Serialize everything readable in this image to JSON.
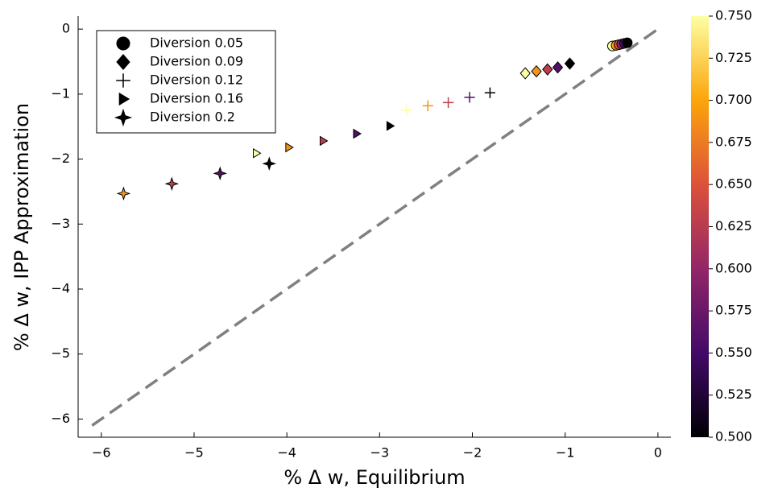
{
  "chart_data": {
    "type": "scatter",
    "xlabel": "% Δ w, Equilibrium",
    "ylabel": "% Δ w, IPP Approximation",
    "xlim": [
      -6.25,
      0.14
    ],
    "ylim": [
      -6.28,
      0.2
    ],
    "xticks": [
      {
        "value": -6,
        "label": "−6"
      },
      {
        "value": -5,
        "label": "−5"
      },
      {
        "value": -4,
        "label": "−4"
      },
      {
        "value": -3,
        "label": "−3"
      },
      {
        "value": -2,
        "label": "−2"
      },
      {
        "value": -1,
        "label": "−1"
      },
      0
    ],
    "yticks": [
      {
        "value": -6,
        "label": "−6"
      },
      {
        "value": -5,
        "label": "−5"
      },
      {
        "value": -4,
        "label": "−4"
      },
      {
        "value": -3,
        "label": "−3"
      },
      {
        "value": -2,
        "label": "−2"
      },
      {
        "value": -1,
        "label": "−1"
      },
      0
    ],
    "legend": "top-left",
    "colormap": [
      "#000004",
      "#420a68",
      "#932667",
      "#dd513a",
      "#fca50a",
      "#fcffa4"
    ],
    "zlim": [
      0.5,
      0.75
    ],
    "zticks": [
      {
        "value": 0.5,
        "label": "0.500"
      },
      {
        "value": 0.525,
        "label": "0.525"
      },
      {
        "value": 0.55,
        "label": "0.550"
      },
      {
        "value": 0.575,
        "label": "0.575"
      },
      {
        "value": 0.6,
        "label": "0.600"
      },
      {
        "value": 0.625,
        "label": "0.625"
      },
      {
        "value": 0.65,
        "label": "0.650"
      },
      {
        "value": 0.675,
        "label": "0.675"
      },
      {
        "value": 0.7,
        "label": "0.700"
      },
      {
        "value": 0.725,
        "label": "0.725"
      },
      {
        "value": 0.75,
        "label": "0.750"
      }
    ],
    "diagonal": {
      "x": [
        -6.1,
        0
      ],
      "values": [
        -6.1,
        0
      ],
      "color": "#808080"
    },
    "series": [
      {
        "name": "Diversion 0.05",
        "marker": "circle",
        "x": [
          -0.49,
          -0.45,
          -0.42,
          -0.39,
          -0.36,
          -0.33
        ],
        "values": [
          -0.26,
          -0.25,
          -0.24,
          -0.23,
          -0.22,
          -0.21
        ],
        "z": [
          0.75,
          0.7,
          0.65,
          0.6,
          0.55,
          0.5
        ]
      },
      {
        "name": "Diversion 0.09",
        "marker": "diamond",
        "x": [
          -1.43,
          -1.31,
          -1.19,
          -1.08,
          -0.95
        ],
        "values": [
          -0.68,
          -0.65,
          -0.62,
          -0.59,
          -0.53
        ],
        "z": [
          0.75,
          0.69,
          0.63,
          0.56,
          0.5
        ]
      },
      {
        "name": "Diversion 0.12",
        "marker": "plus",
        "x": [
          -2.71,
          -2.48,
          -2.26,
          -2.03,
          -1.81
        ],
        "values": [
          -1.25,
          -1.18,
          -1.13,
          -1.05,
          -0.98
        ],
        "z": [
          0.75,
          0.69,
          0.63,
          0.56,
          0.5
        ]
      },
      {
        "name": "Diversion 0.16",
        "marker": "triangle",
        "x": [
          -4.33,
          -3.98,
          -3.61,
          -3.25,
          -2.89
        ],
        "values": [
          -1.91,
          -1.82,
          -1.72,
          -1.61,
          -1.49
        ],
        "z": [
          0.75,
          0.69,
          0.63,
          0.56,
          0.5
        ]
      },
      {
        "name": "Diversion 0.2",
        "marker": "star",
        "x": [
          -5.76,
          -5.24,
          -4.72,
          -4.19
        ],
        "values": [
          -2.53,
          -2.38,
          -2.22,
          -2.07
        ],
        "z": [
          0.69,
          0.63,
          0.56,
          0.5
        ]
      }
    ]
  }
}
